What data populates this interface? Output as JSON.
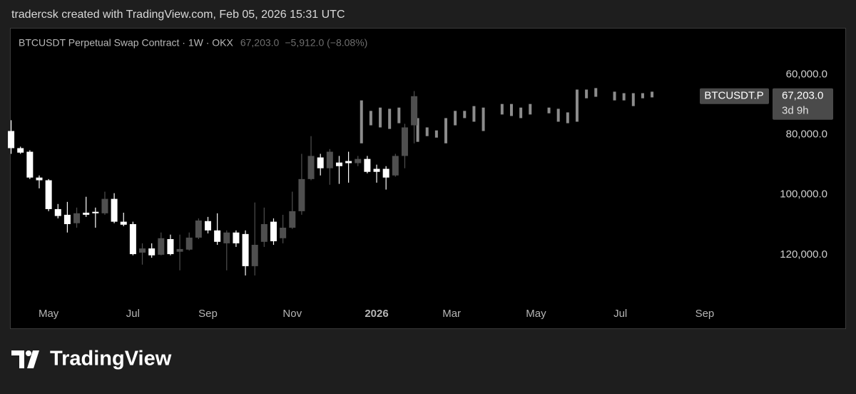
{
  "header": {
    "credit": "tradercsk created with TradingView.com, Feb 05, 2026 15:31 UTC"
  },
  "footer": {
    "brand": "TradingView"
  },
  "chart_data": {
    "type": "candlestick",
    "title": "BTCUSDT Perpetual Swap Contract · 1W · OKX",
    "last_price_label": "67,203.0",
    "change_label": "−5,912.0 (−8.08%)",
    "symbol_tag": "BTCUSDT.P",
    "countdown": "3d 9h",
    "inverted": true,
    "up_color": "#ffffff",
    "down_color": "#4f4f4f",
    "ylim": [
      53000,
      135000
    ],
    "yticks": [
      {
        "value": 60000,
        "label": "60,000.0"
      },
      {
        "value": 80000,
        "label": "80,000.0"
      },
      {
        "value": 100000,
        "label": "100,000.0"
      },
      {
        "value": 120000,
        "label": "120,000.0"
      }
    ],
    "categories": [
      null,
      null,
      null,
      null,
      "May",
      null,
      null,
      null,
      null,
      null,
      null,
      null,
      null,
      "Jul",
      null,
      null,
      null,
      null,
      null,
      null,
      null,
      "Sep",
      null,
      null,
      null,
      null,
      null,
      null,
      null,
      null,
      "Nov",
      null,
      null,
      null,
      null,
      null,
      null,
      null,
      null,
      "2026",
      null,
      null,
      null,
      null,
      null,
      null,
      null,
      "Mar",
      null,
      null,
      null,
      null,
      null,
      null,
      null,
      null,
      "May",
      null,
      null,
      null,
      null,
      null,
      null,
      null,
      null,
      "Jul",
      null,
      null,
      null,
      null,
      null,
      null,
      null,
      null,
      "Sep",
      null,
      null,
      null,
      null,
      null,
      null
    ],
    "open": [
      78800,
      84500,
      85700,
      94300,
      95200,
      104800,
      106700,
      109500,
      106000,
      105700,
      106200,
      101400,
      109000,
      109800,
      119300,
      117900,
      120000,
      114800,
      119000,
      118300,
      114300,
      108800,
      111900,
      116200,
      112600,
      113100,
      123800,
      115700,
      109000,
      114500,
      111000,
      105500,
      94800,
      87600,
      91200,
      89300,
      88800,
      89500,
      88100,
      91400,
      91400,
      93600,
      87100,
      76900,
      null,
      null,
      null,
      null,
      null,
      null,
      null,
      null,
      null,
      null,
      null,
      null,
      null,
      null,
      null,
      null,
      null,
      null,
      null,
      null,
      null,
      null,
      null,
      null,
      null,
      null,
      null,
      null,
      null,
      null,
      null,
      null,
      null,
      null,
      null,
      null,
      null
    ],
    "high": [
      86400,
      86400,
      94800,
      97900,
      105500,
      107900,
      112600,
      111000,
      107400,
      111000,
      106700,
      109500,
      110500,
      120200,
      123300,
      121000,
      120200,
      120200,
      125200,
      118600,
      114800,
      112900,
      116700,
      125200,
      117400,
      126900,
      126900,
      117400,
      116700,
      116200,
      111400,
      106700,
      95200,
      93600,
      96700,
      96400,
      96000,
      90500,
      92900,
      96000,
      98300,
      94000,
      91200,
      82900,
      null,
      null,
      null,
      null,
      null,
      null,
      null,
      null,
      null,
      null,
      null,
      null,
      null,
      null,
      null,
      null,
      null,
      null,
      null,
      null,
      null,
      null,
      null,
      null,
      null,
      null,
      null,
      null,
      null,
      null,
      null,
      null,
      null,
      null,
      null,
      null,
      null
    ],
    "low": [
      75200,
      84000,
      85200,
      93600,
      94800,
      103100,
      102400,
      104300,
      100700,
      104300,
      99000,
      99500,
      106000,
      109000,
      116200,
      116200,
      112600,
      113300,
      113300,
      112600,
      107900,
      107400,
      106200,
      111900,
      111900,
      111900,
      102600,
      104300,
      107900,
      106700,
      99000,
      86400,
      80500,
      86400,
      84800,
      87100,
      85700,
      87100,
      87100,
      90000,
      90500,
      86400,
      76400,
      65500,
      null,
      null,
      null,
      null,
      null,
      null,
      null,
      null,
      null,
      null,
      null,
      null,
      null,
      null,
      null,
      null,
      null,
      null,
      null,
      null,
      null,
      null,
      null,
      null,
      null,
      null,
      null,
      null,
      null,
      null,
      null,
      null,
      null,
      null,
      null,
      null,
      null
    ],
    "close": [
      84500,
      86000,
      94300,
      95200,
      104800,
      107100,
      109800,
      106200,
      106700,
      106200,
      101400,
      109000,
      110000,
      119800,
      117900,
      120200,
      114500,
      119800,
      118100,
      114300,
      108600,
      111900,
      115700,
      112600,
      116200,
      123800,
      116700,
      109800,
      115500,
      111000,
      105500,
      94800,
      87100,
      91200,
      85700,
      90500,
      89500,
      88100,
      92400,
      92400,
      94300,
      87100,
      77600,
      67203,
      null,
      null,
      null,
      null,
      null,
      null,
      null,
      null,
      null,
      null,
      null,
      null,
      null,
      null,
      null,
      null,
      null,
      null,
      null,
      null,
      null,
      null,
      null,
      null,
      null,
      null,
      null,
      null,
      null,
      null,
      null,
      null,
      null,
      null,
      null,
      null,
      null
    ],
    "overlay": {
      "color": "#8c8c8c",
      "low": [
        null,
        null,
        null,
        null,
        null,
        null,
        null,
        null,
        null,
        null,
        null,
        null,
        null,
        null,
        null,
        null,
        null,
        null,
        null,
        null,
        null,
        null,
        null,
        null,
        null,
        null,
        null,
        null,
        null,
        null,
        null,
        null,
        null,
        null,
        null,
        null,
        null,
        68600,
        72100,
        71000,
        71400,
        71000,
        null,
        74500,
        77600,
        78600,
        74500,
        72100,
        72100,
        70500,
        71000,
        null,
        69800,
        69800,
        71000,
        69800,
        null,
        71000,
        71400,
        72600,
        65000,
        65000,
        64500,
        null,
        65700,
        66200,
        66200,
        66200,
        65700,
        null,
        null,
        null,
        null,
        null,
        null,
        null,
        null,
        null,
        null,
        null,
        null
      ],
      "high": [
        null,
        null,
        null,
        null,
        null,
        null,
        null,
        null,
        null,
        null,
        null,
        null,
        null,
        null,
        null,
        null,
        null,
        null,
        null,
        null,
        null,
        null,
        null,
        null,
        null,
        null,
        null,
        null,
        null,
        null,
        null,
        null,
        null,
        null,
        null,
        null,
        null,
        82900,
        76900,
        77600,
        78100,
        76200,
        null,
        82400,
        80500,
        81000,
        82900,
        76900,
        74500,
        75700,
        78800,
        null,
        73300,
        73800,
        74500,
        73300,
        null,
        72900,
        75700,
        76200,
        75700,
        67900,
        67400,
        null,
        68600,
        68600,
        70500,
        67900,
        67600,
        null,
        null,
        null,
        null,
        null,
        null,
        null,
        null,
        null,
        null,
        null,
        null
      ]
    }
  }
}
